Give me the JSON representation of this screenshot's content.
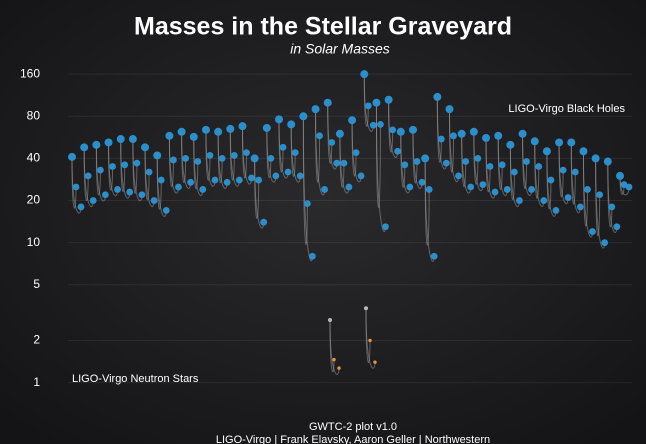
{
  "chart_data": {
    "type": "scatter",
    "title": "Masses in the Stellar Graveyard",
    "subtitle": "in Solar Masses",
    "log_y": true,
    "grid": true,
    "ylim": [
      0.9,
      180
    ],
    "yticks": [
      1,
      2,
      5,
      10,
      20,
      40,
      80,
      160
    ],
    "series": [
      {
        "name": "LIGO-Virgo Black Holes",
        "color": "#2b8fcc",
        "final_color": "#2b8fcc",
        "primary": [
          25,
          30,
          33,
          35,
          36,
          37,
          32,
          28,
          39,
          40,
          38,
          42,
          40,
          42,
          44,
          28,
          40,
          48,
          44,
          19,
          58,
          52,
          37,
          44,
          95,
          70,
          64,
          36,
          38,
          24,
          55,
          58,
          38,
          40,
          35,
          36,
          32,
          38,
          35,
          28,
          33,
          32,
          24,
          22,
          18,
          26
        ],
        "secondary": [
          18,
          20,
          22,
          24,
          23,
          22,
          20,
          17,
          25,
          27,
          24,
          28,
          27,
          28,
          29,
          14,
          30,
          32,
          30,
          8,
          24,
          37,
          25,
          30,
          69,
          13,
          45,
          25,
          27,
          8,
          37,
          30,
          25,
          26,
          23,
          24,
          20,
          24,
          20,
          17,
          21,
          18,
          12,
          10,
          13,
          25
        ],
        "final": [
          41,
          48,
          50,
          52,
          55,
          55,
          48,
          42,
          58,
          62,
          57,
          64,
          62,
          65,
          68,
          40,
          66,
          76,
          70,
          80,
          90,
          100,
          60,
          75,
          160,
          100,
          105,
          62,
          64,
          40,
          110,
          90,
          60,
          62,
          56,
          58,
          50,
          60,
          53,
          45,
          52,
          52,
          45,
          40,
          38,
          30
        ]
      },
      {
        "name": "LIGO-Virgo Neutron Stars",
        "color": "#e8953a",
        "final_color": "#b8b8b8",
        "primary": [
          1.46,
          2.0
        ],
        "secondary": [
          1.27,
          1.4
        ],
        "final": [
          2.8,
          3.4
        ]
      }
    ],
    "footer": [
      "GWTC-2 plot v1.0",
      "LIGO-Virgo | Frank Elavsky, Aaron Geller | Northwestern"
    ]
  }
}
